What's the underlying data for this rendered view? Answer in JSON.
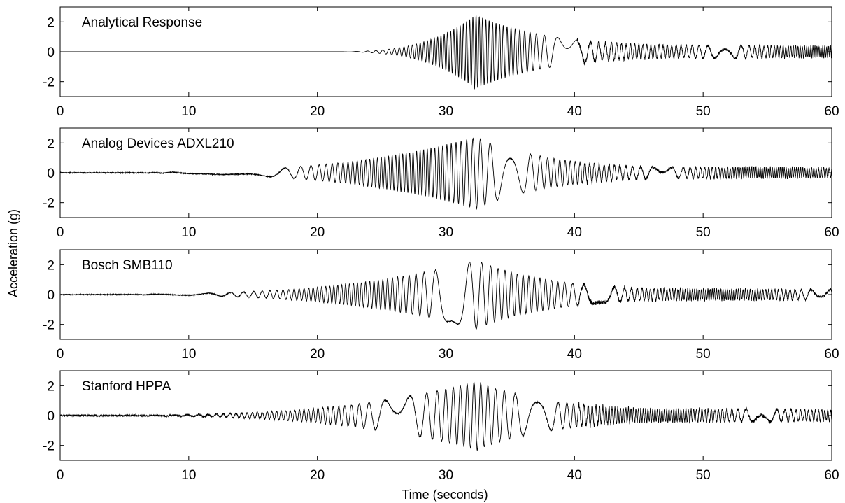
{
  "chart_data": {
    "type": "line",
    "xlabel": "Time (seconds)",
    "ylabel": "Acceleration (g)",
    "xlim": [
      0,
      60
    ],
    "ylim": [
      -3,
      3
    ],
    "xticks": [
      0,
      10,
      20,
      30,
      40,
      50,
      60
    ],
    "xtick_labels": [
      "0",
      "10",
      "20",
      "30",
      "40",
      "50",
      "60"
    ],
    "yticks": [
      2,
      0,
      -2
    ],
    "ytick_labels": [
      "2",
      "0",
      "-2"
    ],
    "grid": false,
    "colors": {
      "line": "#000000",
      "axes": "#000000",
      "background": "#ffffff"
    },
    "panels": [
      {
        "title": "Analytical Response",
        "onset": 20.3,
        "peak_time": 32.2,
        "peak_amplitude": 2.4,
        "tail_amplitude": 0.35,
        "pre_onset_noise": 0.0
      },
      {
        "title": "Analog Devices ADXL210",
        "onset": 0,
        "peak_time": 32.2,
        "peak_amplitude": 2.35,
        "tail_amplitude": 0.3,
        "pre_onset_noise": 0.03
      },
      {
        "title": "Bosch SMB110",
        "onset": 0,
        "peak_time": 32.2,
        "peak_amplitude": 2.25,
        "tail_amplitude": 0.3,
        "pre_onset_noise": 0.03
      },
      {
        "title": "Stanford HPPA",
        "onset": 0,
        "peak_time": 32.2,
        "peak_amplitude": 2.25,
        "tail_amplitude": 0.35,
        "pre_onset_noise": 0.06
      }
    ]
  }
}
